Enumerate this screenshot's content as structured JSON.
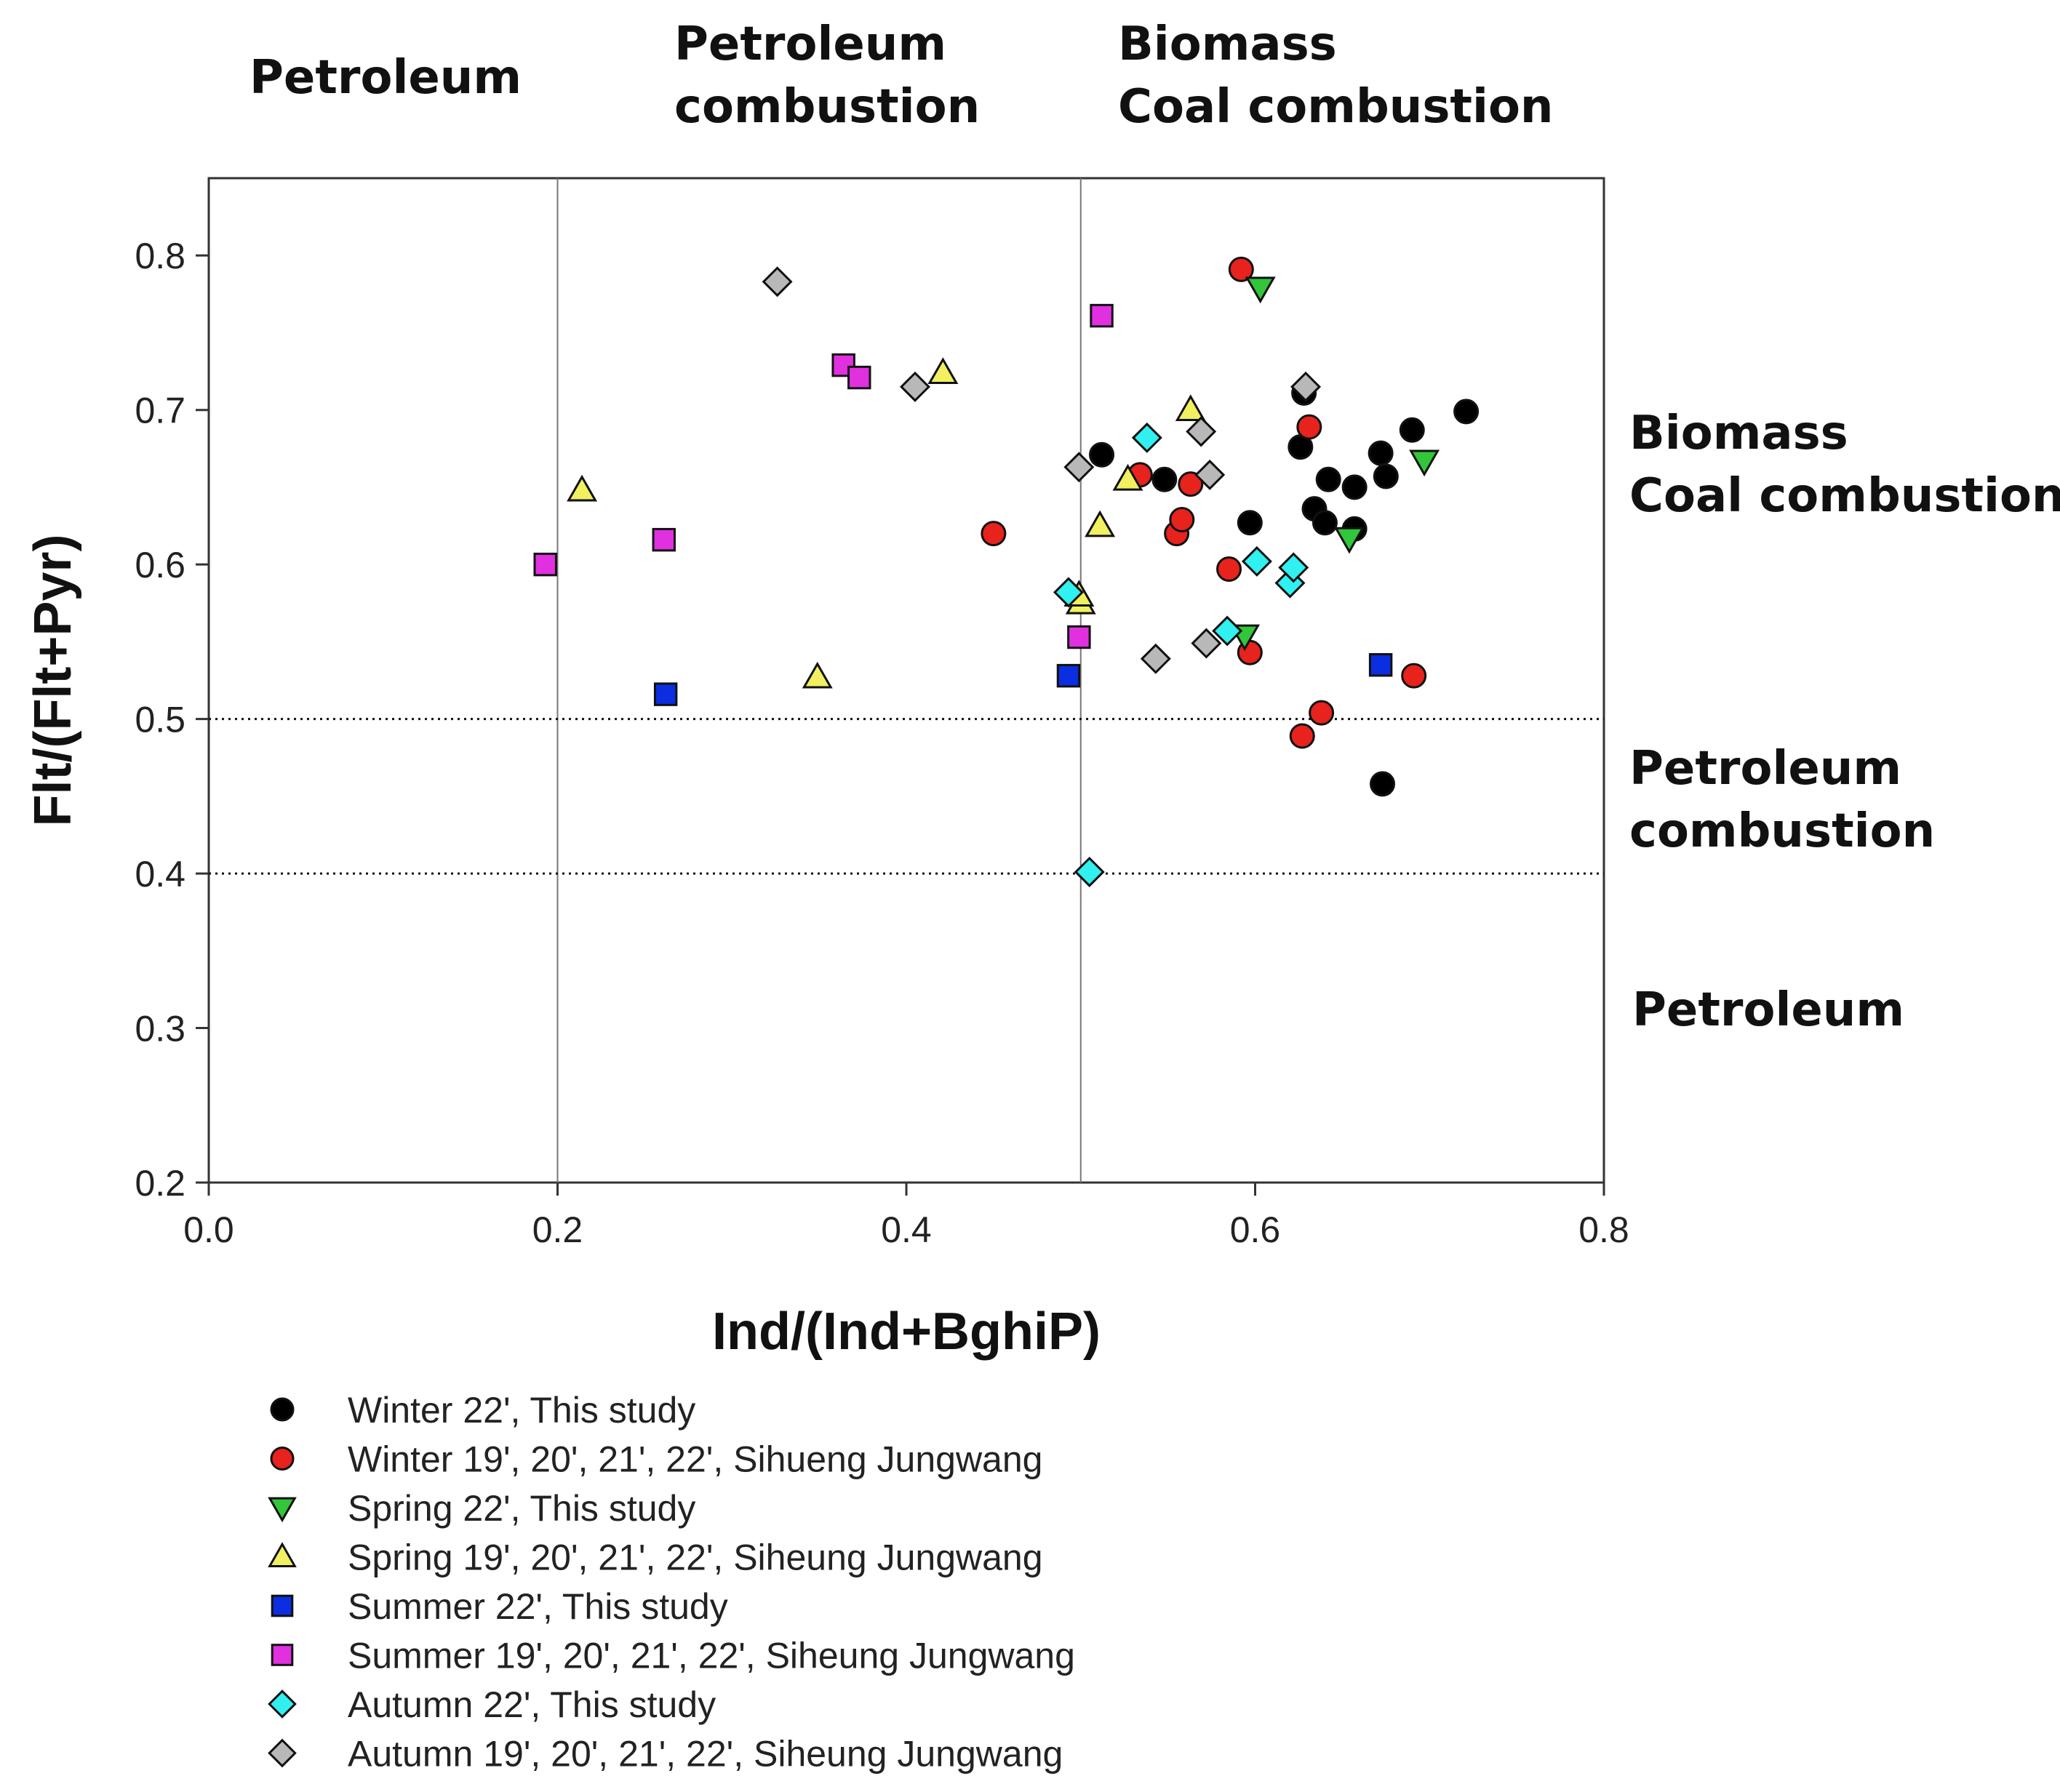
{
  "chart_data": {
    "type": "scatter",
    "xlabel": "Ind/(Ind+BghiP)",
    "ylabel": "Flt/(Flt+Pyr)",
    "xlim": [
      0.0,
      0.8
    ],
    "ylim": [
      0.2,
      0.85
    ],
    "xticks": [
      "0.0",
      "0.2",
      "0.4",
      "0.6",
      "0.8"
    ],
    "yticks": [
      "0.2",
      "0.3",
      "0.4",
      "0.5",
      "0.6",
      "0.7",
      "0.8"
    ],
    "xtick_values": [
      0.0,
      0.2,
      0.4,
      0.6,
      0.8
    ],
    "ytick_values": [
      0.2,
      0.3,
      0.4,
      0.5,
      0.6,
      0.7,
      0.8
    ],
    "vertical_threshold_lines": [
      0.2,
      0.5
    ],
    "horizontal_threshold_lines": [
      0.4,
      0.5
    ],
    "top_zone_labels": [
      {
        "lines": [
          "Petroleum"
        ],
        "x_center": 0.095
      },
      {
        "lines": [
          "Petroleum",
          "combustion"
        ],
        "x_center": 0.35
      },
      {
        "lines": [
          "Biomass",
          "Coal combustion"
        ],
        "x_center": 0.65
      }
    ],
    "right_zone_labels": [
      {
        "lines": [
          "Biomass",
          "Coal combustion"
        ],
        "y_center": 0.66
      },
      {
        "lines": [
          "Petroleum",
          "combustion"
        ],
        "y_center": 0.45
      },
      {
        "lines": [
          "Petroleum"
        ],
        "y_center": 0.3
      }
    ],
    "legend_position": "below",
    "series": [
      {
        "name": "Winter 22', This study",
        "marker": "circle",
        "color": "#000000",
        "points": [
          [
            0.512,
            0.671
          ],
          [
            0.548,
            0.655
          ],
          [
            0.597,
            0.627
          ],
          [
            0.626,
            0.676
          ],
          [
            0.628,
            0.711
          ],
          [
            0.634,
            0.636
          ],
          [
            0.64,
            0.627
          ],
          [
            0.642,
            0.655
          ],
          [
            0.657,
            0.65
          ],
          [
            0.657,
            0.623
          ],
          [
            0.672,
            0.672
          ],
          [
            0.675,
            0.657
          ],
          [
            0.69,
            0.687
          ],
          [
            0.721,
            0.699
          ],
          [
            0.673,
            0.458
          ]
        ]
      },
      {
        "name": "Winter 19', 20', 21', 22', Sihueng Jungwang",
        "marker": "circle",
        "color": "#e8221c",
        "points": [
          [
            0.45,
            0.62
          ],
          [
            0.534,
            0.658
          ],
          [
            0.555,
            0.62
          ],
          [
            0.558,
            0.629
          ],
          [
            0.563,
            0.652
          ],
          [
            0.585,
            0.597
          ],
          [
            0.592,
            0.791
          ],
          [
            0.597,
            0.543
          ],
          [
            0.631,
            0.689
          ],
          [
            0.627,
            0.489
          ],
          [
            0.638,
            0.504
          ],
          [
            0.691,
            0.528
          ]
        ]
      },
      {
        "name": "Spring 22', This study",
        "marker": "triangle-down",
        "color": "#32c63a",
        "points": [
          [
            0.603,
            0.779
          ],
          [
            0.594,
            0.554
          ],
          [
            0.654,
            0.617
          ],
          [
            0.697,
            0.667
          ]
        ]
      },
      {
        "name": "Spring 19', 20', 21', 22', Siheung Jungwang",
        "marker": "triangle-up",
        "color": "#f0f060",
        "points": [
          [
            0.214,
            0.648
          ],
          [
            0.349,
            0.527
          ],
          [
            0.421,
            0.724
          ],
          [
            0.5,
            0.575
          ],
          [
            0.511,
            0.625
          ],
          [
            0.527,
            0.655
          ],
          [
            0.563,
            0.7
          ],
          [
            0.499,
            0.58
          ]
        ]
      },
      {
        "name": "Summer 22', This study",
        "marker": "square",
        "color": "#0a2ee0",
        "points": [
          [
            0.262,
            0.516
          ],
          [
            0.493,
            0.528
          ],
          [
            0.672,
            0.535
          ]
        ]
      },
      {
        "name": "Summer 19', 20', 21', 22', Siheung Jungwang",
        "marker": "square",
        "color": "#e030e0",
        "points": [
          [
            0.193,
            0.6
          ],
          [
            0.261,
            0.616
          ],
          [
            0.364,
            0.729
          ],
          [
            0.373,
            0.721
          ],
          [
            0.499,
            0.553
          ],
          [
            0.512,
            0.761
          ]
        ]
      },
      {
        "name": "Autumn 22', This study",
        "marker": "diamond",
        "color": "#30f0f0",
        "points": [
          [
            0.493,
            0.582
          ],
          [
            0.505,
            0.401
          ],
          [
            0.538,
            0.682
          ],
          [
            0.584,
            0.557
          ],
          [
            0.601,
            0.602
          ],
          [
            0.62,
            0.588
          ],
          [
            0.622,
            0.598
          ]
        ]
      },
      {
        "name": "Autumn 19', 20', 21', 22', Siheung Jungwang",
        "marker": "diamond",
        "color": "#b8b8b8",
        "points": [
          [
            0.326,
            0.783
          ],
          [
            0.405,
            0.715
          ],
          [
            0.499,
            0.663
          ],
          [
            0.543,
            0.539
          ],
          [
            0.569,
            0.686
          ],
          [
            0.572,
            0.549
          ],
          [
            0.574,
            0.658
          ],
          [
            0.629,
            0.715
          ]
        ]
      }
    ]
  }
}
